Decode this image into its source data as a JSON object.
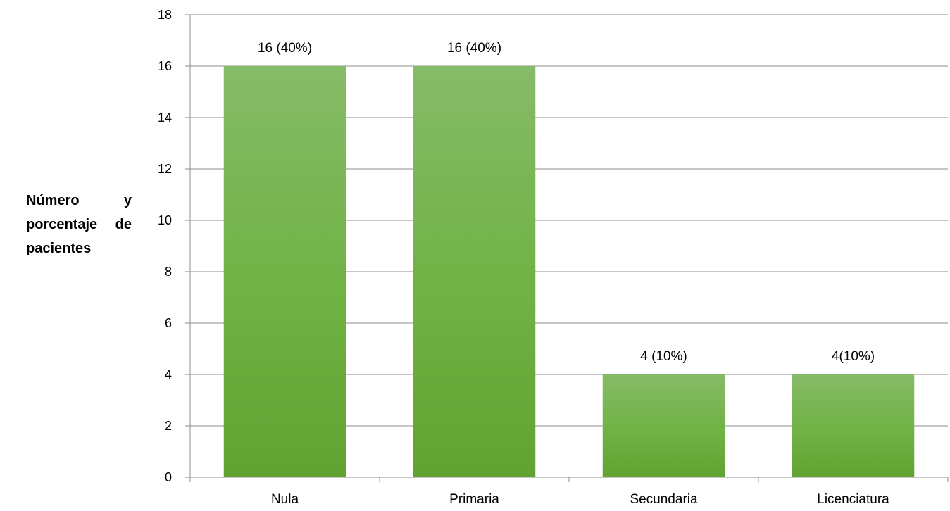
{
  "chart_data": {
    "type": "bar",
    "title": "",
    "xlabel": "",
    "ylabel": "Número y porcentaje de pacientes",
    "categories": [
      "Nula",
      "Primaria",
      "Secundaria",
      "Licenciatura"
    ],
    "values": [
      16,
      16,
      4,
      4
    ],
    "data_labels": [
      "16 (40%)",
      "16 (40%)",
      "4 (10%)",
      "4(10%)"
    ],
    "ylim": [
      0,
      18
    ],
    "yticks": [
      0,
      2,
      4,
      6,
      8,
      10,
      12,
      14,
      16,
      18
    ],
    "grid": true,
    "legend": "none",
    "bar_color": "#6fae44"
  }
}
